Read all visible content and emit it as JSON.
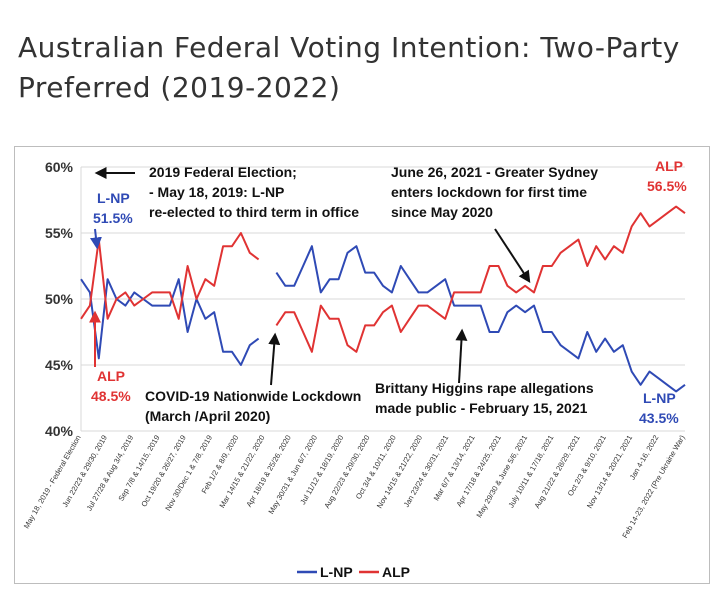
{
  "page": {
    "title": "Australian Federal Voting Intention: Two-Party Preferred (2019-2022)"
  },
  "colors": {
    "lnp": "#2f4ab5",
    "alp": "#e03333",
    "grid": "#d9d9d9",
    "text": "#333333"
  },
  "chart_data": {
    "type": "line",
    "ylim": [
      40,
      60
    ],
    "yticks": [
      40,
      45,
      50,
      55,
      60
    ],
    "ytick_labels": [
      "40%",
      "45%",
      "50%",
      "55%",
      "60%"
    ],
    "x_tick_labels": [
      "May 18, 2019 - Federal Election",
      "Jun 22/23 & 29/30, 2019",
      "Jul 27/28 & Aug 3/4, 2019",
      "Sep 7/8 & 14/15, 2019",
      "Oct 19/20 & 26/27, 2019",
      "Nov 30/Dec 1 & 7/8, 2019",
      "Feb 1/2 & 8/9, 2020",
      "Mar 14/15 & 21/22, 2020",
      "Apr 18/19 & 25/26, 2020",
      "May 30/31 & Jun 6/7, 2020",
      "Jul 11/12 & 18/19, 2020",
      "Aug 22/23 & 29/30, 2020",
      "Oct 3/4 & 10/11, 2020",
      "Nov 14/15 & 21/22, 2020",
      "Jan 23/24 & 30/31, 2021",
      "Mar 6/7 & 13/14, 2021",
      "Apr 17/18 & 24/25, 2021",
      "May 29/30 & June 5/6, 2021",
      "July 10/11 & 17/18, 2021",
      "Aug 21/22 & 28/29, 2021",
      "Oct 2/3 & 9/10, 2021",
      "Nov 13/14 & 20/21, 2021",
      "Jan 4-16, 2022",
      "Feb 14-23, 2022 (Pre Ukraine War)"
    ],
    "series": [
      {
        "name": "L-NP",
        "values": [
          51.5,
          50.5,
          45.5,
          51.5,
          50,
          49.5,
          50.5,
          50,
          49.5,
          49.5,
          49.5,
          51.5,
          47.5,
          50,
          48.5,
          49,
          46,
          46,
          45,
          46.5,
          47,
          null,
          52,
          51,
          51,
          52.5,
          54,
          50.5,
          51.5,
          51.5,
          53.5,
          54,
          52,
          52,
          51,
          50.5,
          52.5,
          51.5,
          50.5,
          50.5,
          51,
          51.5,
          49.5,
          49.5,
          49.5,
          49.5,
          47.5,
          47.5,
          49,
          49.5,
          49,
          49.5,
          47.5,
          47.5,
          46.5,
          46,
          45.5,
          47.5,
          46,
          47,
          46,
          46.5,
          44.5,
          43.5,
          44.5,
          44,
          43.5,
          43,
          43.5
        ]
      },
      {
        "name": "ALP",
        "values": [
          48.5,
          49.5,
          54.5,
          48.5,
          50,
          50.5,
          49.5,
          50,
          50.5,
          50.5,
          50.5,
          48.5,
          52.5,
          50,
          51.5,
          51,
          54,
          54,
          55,
          53.5,
          53,
          null,
          48,
          49,
          49,
          47.5,
          46,
          49.5,
          48.5,
          48.5,
          46.5,
          46,
          48,
          48,
          49,
          49.5,
          47.5,
          48.5,
          49.5,
          49.5,
          49,
          48.5,
          50.5,
          50.5,
          50.5,
          50.5,
          52.5,
          52.5,
          51,
          50.5,
          51,
          50.5,
          52.5,
          52.5,
          53.5,
          54,
          54.5,
          52.5,
          54,
          53,
          54,
          53.5,
          55.5,
          56.5,
          55.5,
          56,
          56.5,
          57,
          56.5
        ]
      }
    ],
    "annotations": {
      "election_line1": "2019 Federal Election;",
      "election_line2": "- May 18, 2019: L-NP",
      "election_line3": "re-elected to third term in office",
      "sydney_line1": "June 26, 2021 - Greater Sydney",
      "sydney_line2": "enters lockdown for first time",
      "sydney_line3": "since May 2020",
      "covid_line1": "COVID-19 Nationwide Lockdown",
      "covid_line2": "(March /April 2020)",
      "higgins_line1": "Brittany Higgins rape allegations",
      "higgins_line2": "made public - February 15, 2021",
      "start_lnp_name": "L-NP",
      "start_lnp_value": "51.5%",
      "start_alp_name": "ALP",
      "start_alp_value": "48.5%",
      "end_alp_name": "ALP",
      "end_alp_value": "56.5%",
      "end_lnp_name": "L-NP",
      "end_lnp_value": "43.5%"
    },
    "legend": {
      "position": "bottom-center",
      "items": [
        "L-NP",
        "ALP"
      ]
    }
  }
}
